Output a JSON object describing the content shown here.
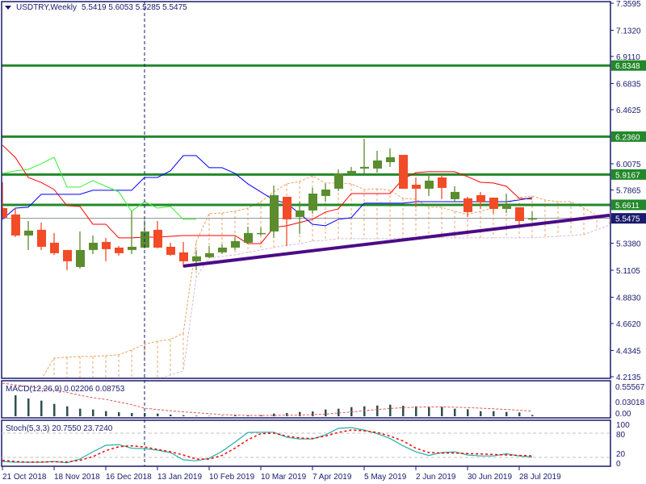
{
  "header": {
    "symbol": "USDTRY,Weekly",
    "ohlc": "5.5419 5.6053 5.5285 5.5475"
  },
  "colors": {
    "bull": "#5b8c2e",
    "bear": "#f24b27",
    "level": "#23882a",
    "axis": "#1a1a6e",
    "trendline": "#4b0b86",
    "current_price": "#1a1a6e",
    "tenkan": "#ff0000",
    "kijun": "#0000ff",
    "chikou": "#33ee33",
    "span_a": "#f0a060",
    "span_b": "#d8b8d0",
    "macd_hist": "#2f4f4f",
    "macd_signal": "#e05555",
    "stoch_main": "#20b2aa",
    "stoch_signal": "#ff0000"
  },
  "chart_data": [
    {
      "type": "candlestick",
      "dates": [
        "21 Oct 2018",
        "28 Oct 2018",
        "4 Nov 2018",
        "11 Nov 2018",
        "18 Nov 2018",
        "25 Nov 2018",
        "2 Dec 2018",
        "9 Dec 2018",
        "16 Dec 2018",
        "23 Dec 2018",
        "30 Dec 2018",
        "6 Jan 2019",
        "13 Jan 2019",
        "20 Jan 2019",
        "27 Jan 2019",
        "3 Feb 2019",
        "10 Feb 2019",
        "17 Feb 2019",
        "24 Feb 2019",
        "3 Mar 2019",
        "10 Mar 2019",
        "17 Mar 2019",
        "24 Mar 2019",
        "31 Mar 2019",
        "7 Apr 2019",
        "14 Apr 2019",
        "21 Apr 2019",
        "28 Apr 2019",
        "5 May 2019",
        "12 May 2019",
        "19 May 2019",
        "26 May 2019",
        "2 Jun 2019",
        "9 Jun 2019",
        "16 Jun 2019",
        "23 Jun 2019",
        "30 Jun 2019",
        "7 Jul 2019",
        "14 Jul 2019",
        "21 Jul 2019",
        "28 Jul 2019",
        "4 Aug 2019",
        "11 Aug 2019",
        "18 Aug 2019",
        "25 Aug 2019",
        "1 Sep 2019",
        "8 Sep 2019",
        "15 Sep 2019"
      ],
      "ohlc": [
        [
          5.634,
          5.851,
          5.553,
          5.553
        ],
        [
          5.58,
          5.634,
          5.39,
          5.403
        ],
        [
          5.403,
          5.525,
          5.281,
          5.444
        ],
        [
          5.451,
          5.512,
          5.281,
          5.308
        ],
        [
          5.342,
          5.424,
          5.24,
          5.254
        ],
        [
          5.281,
          5.281,
          5.111,
          5.186
        ],
        [
          5.138,
          5.437,
          5.125,
          5.281
        ],
        [
          5.281,
          5.403,
          5.247,
          5.342
        ],
        [
          5.349,
          5.383,
          5.186,
          5.288
        ],
        [
          5.301,
          5.315,
          5.233,
          5.254
        ],
        [
          5.281,
          5.607,
          5.247,
          5.308
        ],
        [
          5.301,
          5.532,
          5.294,
          5.437
        ],
        [
          5.451,
          5.525,
          5.294,
          5.301
        ],
        [
          5.308,
          5.342,
          5.233,
          5.24
        ],
        [
          5.261,
          5.349,
          5.138,
          5.186
        ],
        [
          5.186,
          5.281,
          5.111,
          5.227
        ],
        [
          5.22,
          5.315,
          5.213,
          5.254
        ],
        [
          5.261,
          5.328,
          5.247,
          5.301
        ],
        [
          5.301,
          5.39,
          5.281,
          5.356
        ],
        [
          5.342,
          5.478,
          5.335,
          5.424
        ],
        [
          5.417,
          5.471,
          5.403,
          5.424
        ],
        [
          5.437,
          5.824,
          5.383,
          5.743
        ],
        [
          5.729,
          5.729,
          5.315,
          5.539
        ],
        [
          5.559,
          5.688,
          5.417,
          5.614
        ],
        [
          5.614,
          5.804,
          5.587,
          5.756
        ],
        [
          5.736,
          5.838,
          5.688,
          5.79
        ],
        [
          5.797,
          5.96,
          5.777,
          5.926
        ],
        [
          5.919,
          5.981,
          5.913,
          5.947
        ],
        [
          5.967,
          6.218,
          5.926,
          5.981
        ],
        [
          5.967,
          6.116,
          5.933,
          6.035
        ],
        [
          6.021,
          6.137,
          5.981,
          6.062
        ],
        [
          6.082,
          6.082,
          5.797,
          5.797
        ],
        [
          5.831,
          5.892,
          5.641,
          5.797
        ],
        [
          5.797,
          5.913,
          5.736,
          5.865
        ],
        [
          5.892,
          5.913,
          5.709,
          5.804
        ],
        [
          5.709,
          5.818,
          5.688,
          5.77
        ],
        [
          5.716,
          5.729,
          5.559,
          5.6
        ],
        [
          5.743,
          5.77,
          5.627,
          5.682
        ],
        [
          5.722,
          5.722,
          5.587,
          5.627
        ],
        [
          5.627,
          5.756,
          5.593,
          5.661
        ],
        [
          5.641,
          5.641,
          5.471,
          5.525
        ],
        [
          5.5419,
          5.6053,
          5.5285,
          5.5475
        ]
      ],
      "lines": {
        "red": [
          6.164,
          6.06,
          5.892,
          5.85,
          5.79,
          5.654,
          5.648,
          5.498,
          5.498,
          5.383,
          5.383,
          5.389,
          5.389,
          5.396,
          5.403,
          5.403,
          5.403,
          5.403,
          5.403,
          5.335,
          5.335,
          5.471,
          5.485,
          5.512,
          5.539,
          5.6,
          5.627,
          5.756,
          5.756,
          5.756,
          5.756,
          5.879,
          5.933,
          5.94,
          5.94,
          5.94,
          5.899,
          5.851,
          5.845,
          5.818,
          5.716,
          5.709
        ],
        "blue": [
          5.539,
          5.634,
          5.641,
          5.75,
          5.75,
          5.75,
          5.75,
          5.784,
          5.784,
          5.784,
          5.784,
          5.892,
          5.892,
          5.947,
          6.076,
          6.076,
          5.974,
          5.974,
          5.926,
          5.838,
          5.77,
          5.702,
          5.675,
          5.587,
          5.498,
          5.485,
          5.539,
          5.553,
          5.675,
          5.675,
          5.675,
          5.675,
          5.688,
          5.688,
          5.688,
          5.688,
          5.688,
          5.688,
          5.688,
          5.688,
          5.702,
          5.722
        ],
        "green": [
          5.926,
          5.947,
          5.96,
          6.008,
          6.062,
          5.811,
          5.811,
          5.865,
          5.818,
          5.77,
          5.607,
          5.688,
          5.634,
          5.648,
          5.539,
          5.539
        ]
      },
      "cloud": {
        "span_a": [
          null,
          null,
          null,
          4.19,
          4.371,
          4.378,
          4.384,
          4.384,
          4.391,
          4.398,
          4.439,
          4.486,
          4.513,
          4.527,
          4.581,
          5.35,
          5.587,
          5.593,
          5.607,
          5.634,
          5.688,
          5.77,
          5.838,
          5.858,
          5.906,
          5.845,
          5.845,
          5.838,
          5.79,
          5.797,
          5.784,
          5.716,
          5.709,
          5.641,
          5.641,
          5.607,
          5.58,
          5.607,
          5.634,
          5.668,
          5.722,
          5.736,
          5.702,
          5.688,
          5.688,
          5.634,
          5.573,
          5.559
        ],
        "span_b": [
          null,
          null,
          null,
          null,
          null,
          null,
          null,
          null,
          null,
          null,
          null,
          null,
          4.19,
          4.228,
          4.262,
          5.05,
          5.213,
          5.227,
          5.24,
          5.261,
          5.281,
          5.301,
          5.321,
          5.335,
          5.356,
          5.362,
          5.376,
          5.376,
          5.376,
          5.376,
          5.376,
          5.383,
          5.383,
          5.383,
          5.383,
          5.383,
          5.383,
          5.383,
          5.383,
          5.383,
          5.383,
          5.383,
          5.39,
          5.397,
          5.403,
          5.41,
          5.451,
          5.491
        ]
      },
      "levels": [
        6.8348,
        6.236,
        5.9167,
        5.6611
      ],
      "current_price": 5.5475,
      "trendline": {
        "from": {
          "date": "27 Jan 2019",
          "price": 5.145
        },
        "to": {
          "date": "15 Sep 2019",
          "price": 5.573
        }
      },
      "separator_date": "6 Jan 2019",
      "ylim": [
        4.2135,
        7.3595
      ],
      "y_ticks": [
        "7.3595",
        "7.1320",
        "6.9110",
        "6.6835",
        "6.4625",
        "6.0075",
        "5.7865",
        "5.3380",
        "5.1105",
        "4.8830",
        "4.6620",
        "4.4345",
        "4.2135"
      ],
      "x_ticks": [
        "21 Oct 2018",
        "18 Nov 2018",
        "16 Dec 2018",
        "13 Jan 2019",
        "10 Feb 2019",
        "10 Mar 2019",
        "7 Apr 2019",
        "5 May 2019",
        "2 Jun 2019",
        "30 Jun 2019",
        "28 Jul 2019"
      ]
    },
    {
      "type": "bar",
      "label": "MACD(12,26,9) 0.02206 0.08753",
      "histogram": [
        null,
        0.361,
        0.306,
        0.269,
        0.213,
        0.171,
        0.13,
        0.116,
        0.088,
        0.069,
        0.056,
        0.056,
        0.046,
        0.028,
        0.019,
        0.009,
        0.005,
        0.005,
        0.014,
        0.019,
        0.019,
        0.046,
        0.056,
        0.074,
        0.083,
        0.116,
        0.13,
        0.157,
        0.171,
        0.185,
        0.199,
        0.181,
        0.171,
        0.157,
        0.162,
        0.13,
        0.12,
        0.088,
        0.088,
        0.074,
        0.065,
        0.022
      ],
      "signal": [
        0.57,
        0.54,
        0.51,
        0.48,
        0.454,
        0.41,
        0.361,
        0.32,
        0.29,
        0.245,
        0.2,
        0.139,
        0.115,
        0.093,
        0.075,
        0.06,
        0.045,
        0.028,
        0.02,
        0.014,
        0.014,
        0.014,
        0.017,
        0.019,
        0.028,
        0.037,
        0.055,
        0.074,
        0.095,
        0.116,
        0.132,
        0.148,
        0.155,
        0.162,
        0.16,
        0.157,
        0.148,
        0.139,
        0.128,
        0.116,
        0.104,
        0.0875
      ],
      "ylim": [
        0,
        0.55567
      ],
      "y_ticks": [
        "0.55567",
        "0.03018",
        "0.00"
      ]
    },
    {
      "type": "line",
      "label": "Stoch(5,3,3) 20.7550 23.7240",
      "main": [
        9.8,
        8,
        8,
        8,
        9.8,
        6.8,
        15.8,
        33.8,
        50,
        51.8,
        42.8,
        41.6,
        38,
        32,
        14,
        11.6,
        17.6,
        35,
        57.8,
        81.8,
        82.4,
        82.4,
        69.8,
        65.6,
        65.6,
        75.8,
        92,
        93.8,
        87.8,
        78.8,
        66.8,
        48.8,
        33.8,
        24.8,
        32,
        33.8,
        26,
        23.6,
        23.6,
        29,
        23.6,
        20.755
      ],
      "signal": [
        12.8,
        9.8,
        8,
        8.6,
        9.2,
        8.6,
        12.8,
        21.8,
        36.8,
        46.4,
        48.8,
        45.8,
        39.8,
        33.8,
        26,
        15.8,
        15.8,
        24.8,
        42.8,
        63.8,
        78.8,
        80,
        72.8,
        68,
        66.8,
        72.8,
        81.8,
        87.8,
        86,
        81.8,
        72.8,
        60.8,
        42.8,
        32,
        30.8,
        30.8,
        29.6,
        28.4,
        27.2,
        26,
        24.8,
        23.724
      ],
      "levels": [
        80,
        20
      ],
      "ylim": [
        0,
        100
      ],
      "y_ticks": [
        "100",
        "80",
        "20",
        "0"
      ]
    }
  ]
}
